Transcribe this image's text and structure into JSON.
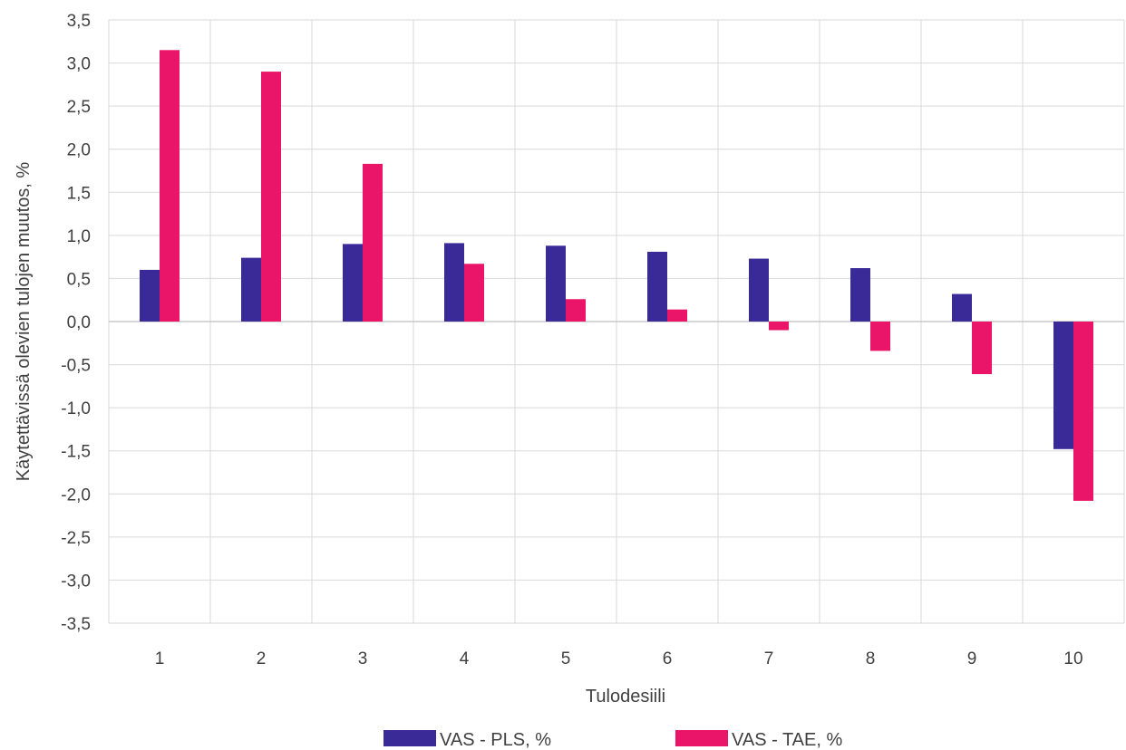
{
  "chart_data": {
    "type": "bar",
    "title": "",
    "xlabel": "Tulodesiili",
    "ylabel": "Käytettävissä olevien tulojen muutos, %",
    "categories": [
      "1",
      "2",
      "3",
      "4",
      "5",
      "6",
      "7",
      "8",
      "9",
      "10"
    ],
    "ylim": [
      -3.5,
      3.5
    ],
    "yticks": [
      "3,5",
      "3,0",
      "2,5",
      "2,0",
      "1,5",
      "1,0",
      "0,5",
      "0,0",
      "-0,5",
      "-1,0",
      "-1,5",
      "-2,0",
      "-2,5",
      "-3,0",
      "-3,5"
    ],
    "grid": true,
    "legend_position": "bottom",
    "series": [
      {
        "name": "VAS - PLS, %",
        "color": "#3A2A97",
        "values": [
          0.6,
          0.74,
          0.9,
          0.91,
          0.88,
          0.81,
          0.73,
          0.62,
          0.32,
          -1.48
        ]
      },
      {
        "name": "VAS - TAE, %",
        "color": "#EA1468",
        "values": [
          3.15,
          2.9,
          1.83,
          0.67,
          0.26,
          0.14,
          -0.1,
          -0.34,
          -0.61,
          -2.08
        ]
      }
    ]
  }
}
